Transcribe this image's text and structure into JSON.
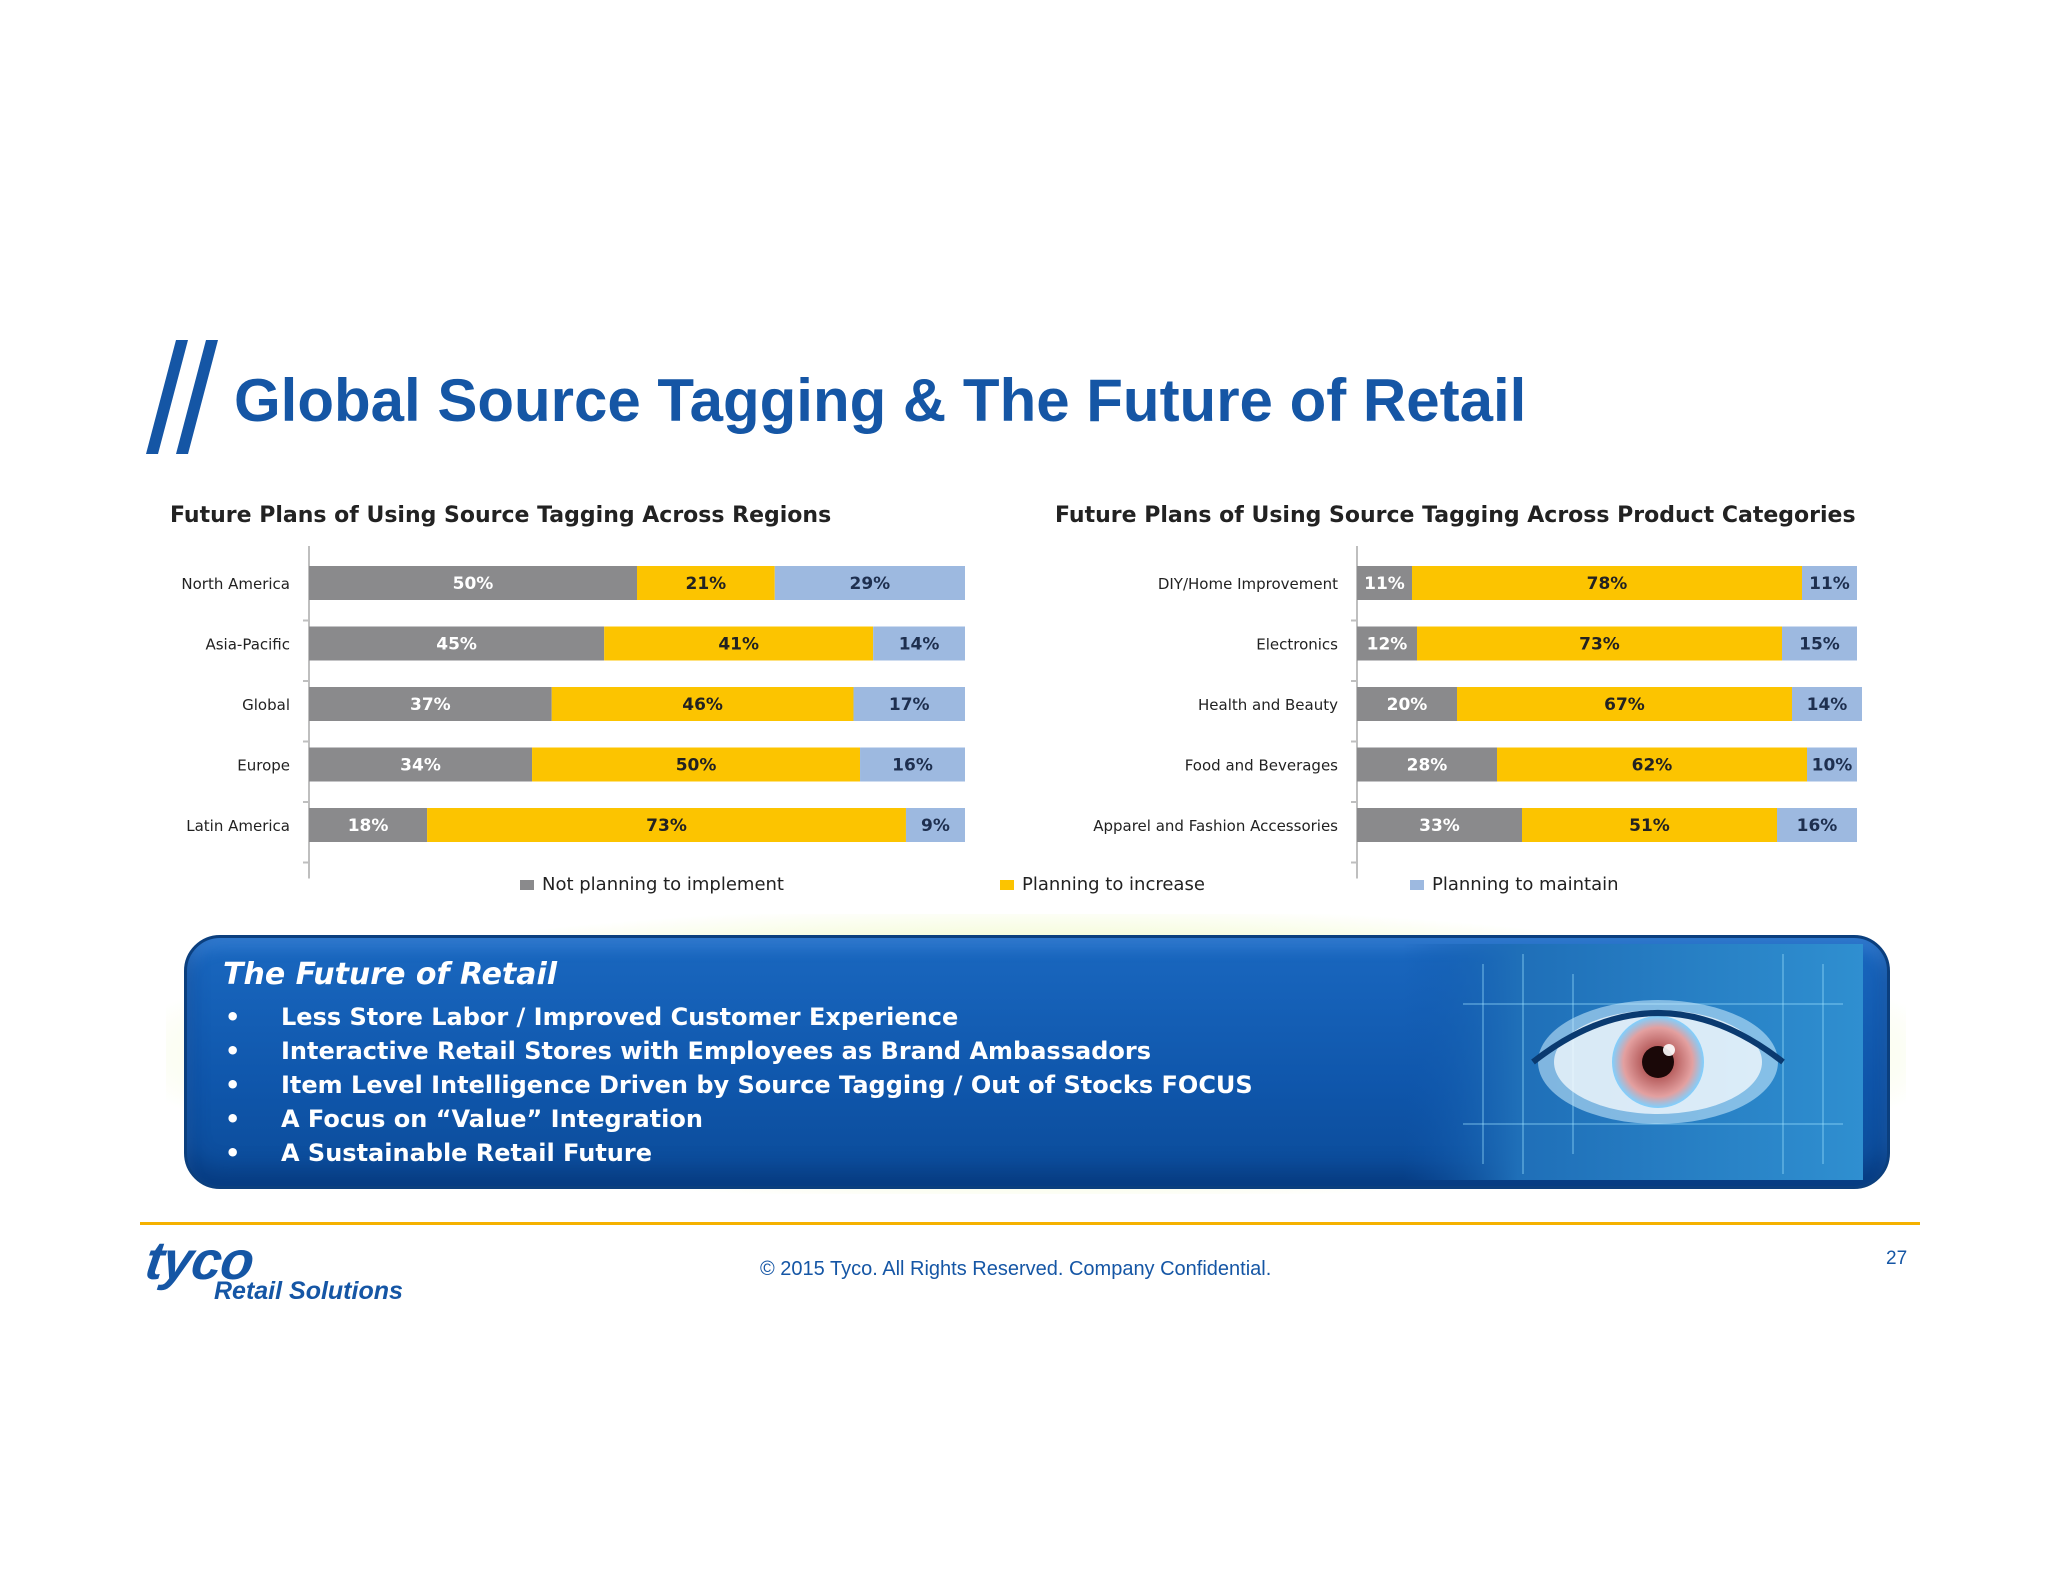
{
  "slide": {
    "title": "Global Source Tagging & The Future of Retail"
  },
  "legend": [
    {
      "label": "Not planning to implement",
      "color": "#8a8a8c"
    },
    {
      "label": "Planning to increase",
      "color": "#fcc400"
    },
    {
      "label": "Planning to maintain",
      "color": "#9db9e0"
    }
  ],
  "chart_data": [
    {
      "type": "bar",
      "orientation": "horizontal",
      "stacked": true,
      "title": "Future Plans of Using Source Tagging Across Regions",
      "categories": [
        "North America",
        "Asia-Pacific",
        "Global",
        "Europe",
        "Latin America"
      ],
      "series": [
        {
          "name": "Not planning to implement",
          "color": "#8a8a8c",
          "values": [
            50,
            45,
            37,
            34,
            18
          ]
        },
        {
          "name": "Planning to increase",
          "color": "#fcc400",
          "values": [
            21,
            41,
            46,
            50,
            73
          ]
        },
        {
          "name": "Planning to maintain",
          "color": "#9db9e0",
          "values": [
            29,
            14,
            17,
            16,
            9
          ]
        }
      ],
      "unit": "%",
      "xlim": [
        0,
        100
      ],
      "grid": false,
      "legend": "bottom"
    },
    {
      "type": "bar",
      "orientation": "horizontal",
      "stacked": true,
      "title": "Future Plans of Using Source Tagging Across Product Categories",
      "categories": [
        "DIY/Home Improvement",
        "Electronics",
        "Health and Beauty",
        "Food and Beverages",
        "Apparel and Fashion Accessories"
      ],
      "series": [
        {
          "name": "Not planning to implement",
          "color": "#8a8a8c",
          "values": [
            11,
            12,
            20,
            28,
            33
          ]
        },
        {
          "name": "Planning to increase",
          "color": "#fcc400",
          "values": [
            78,
            73,
            67,
            62,
            51
          ]
        },
        {
          "name": "Planning to maintain",
          "color": "#9db9e0",
          "values": [
            11,
            15,
            14,
            10,
            16
          ]
        }
      ],
      "unit": "%",
      "xlim": [
        0,
        100
      ],
      "grid": false,
      "legend": "bottom"
    }
  ],
  "banner": {
    "heading": "The Future of Retail",
    "bullet_glyph": "•",
    "bullets": [
      "Less Store Labor / Improved Customer Experience",
      "Interactive Retail Stores with Employees as Brand Ambassadors",
      "Item Level Intelligence Driven by Source Tagging / Out of Stocks FOCUS",
      "A Focus on “Value” Integration",
      "A Sustainable Retail Future"
    ]
  },
  "footer": {
    "logo_word": "tyco",
    "logo_subtitle": "Retail Solutions",
    "copyright": "© 2015 Tyco. All Rights Reserved. Company Confidential.",
    "page_number": "27"
  }
}
